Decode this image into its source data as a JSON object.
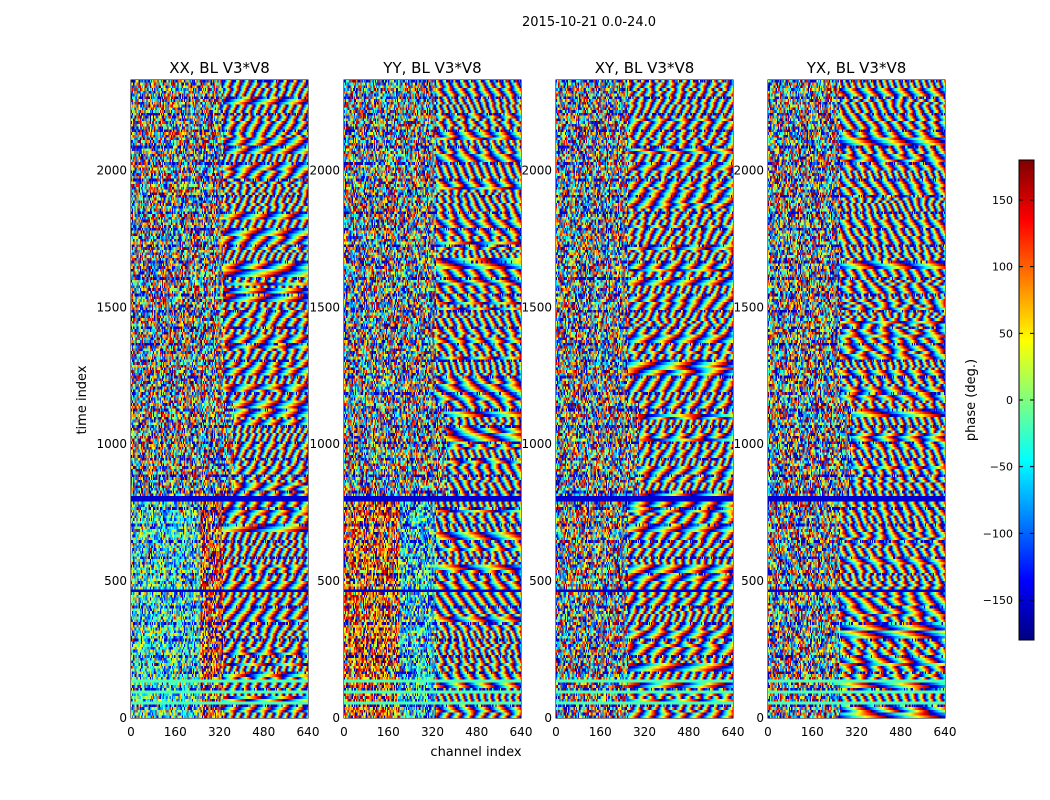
{
  "chart_data": {
    "type": "heatmap",
    "suptitle": "2015-10-21 0.0-24.0",
    "xlabel": "channel index",
    "ylabel": "time index",
    "xlim": [
      0,
      640
    ],
    "ylim": [
      0,
      2330
    ],
    "xticks": [
      "0",
      "160",
      "320",
      "480",
      "640"
    ],
    "xtick_values": [
      0,
      160,
      320,
      480,
      640
    ],
    "yticks": [
      "0",
      "500",
      "1000",
      "1500",
      "2000"
    ],
    "ytick_values": [
      0,
      500,
      1000,
      1500,
      2000
    ],
    "panels": [
      {
        "title": "XX, BL V3*V8"
      },
      {
        "title": "YY, BL V3*V8"
      },
      {
        "title": "XY, BL V3*V8"
      },
      {
        "title": "YX, BL V3*V8"
      }
    ],
    "colorbar": {
      "label": "phase (deg.)",
      "range": [
        -180,
        180
      ],
      "colormap": "jet",
      "ticks": [
        "150",
        "100",
        "50",
        "0",
        "−50",
        "−100",
        "−150"
      ],
      "tick_values": [
        150,
        100,
        50,
        0,
        -50,
        -100,
        -150
      ]
    }
  }
}
